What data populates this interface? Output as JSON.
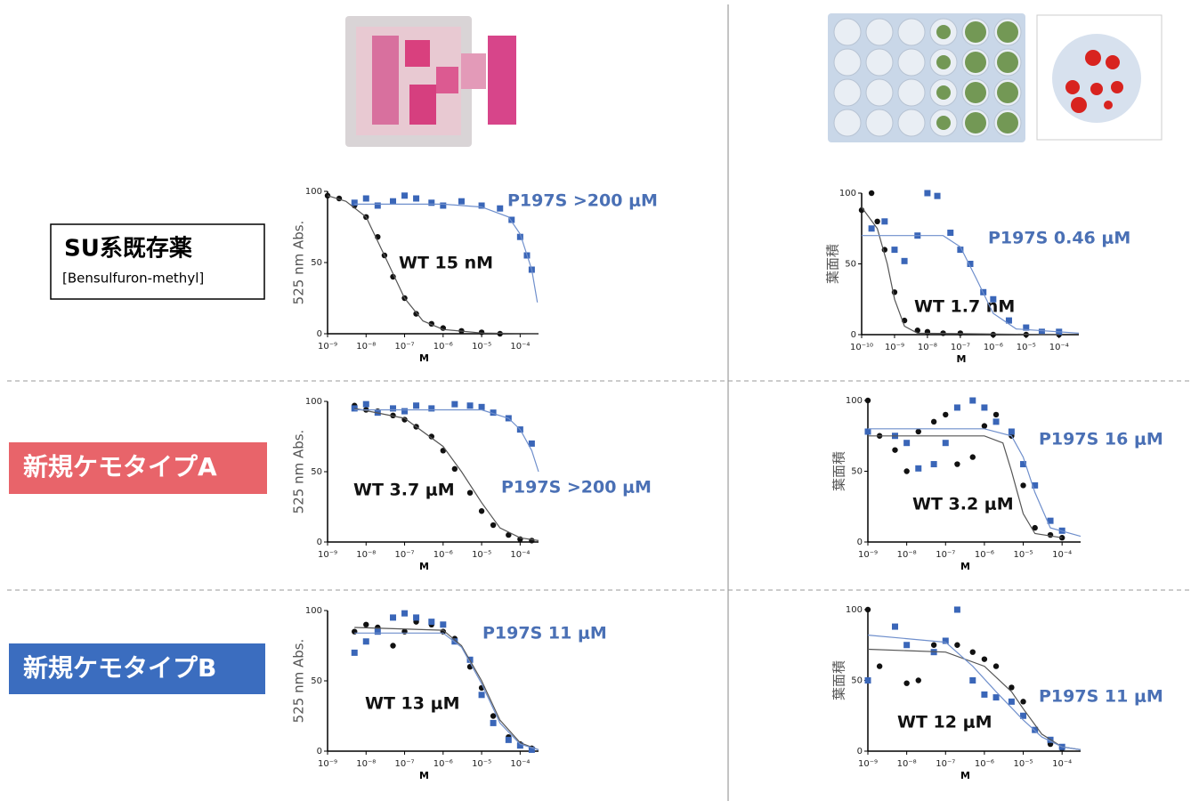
{
  "rows": [
    {
      "label": "SU系既存薬",
      "sublabel": "[Bensulfuron-methyl]"
    },
    {
      "label": "新規ケモタイプA"
    },
    {
      "label": "新規ケモタイプB"
    }
  ],
  "chart_data": [
    {
      "type": "scatter",
      "ylabel": "525 nm Abs.",
      "xlabel": "M",
      "xscale": "log",
      "xlim": [
        1e-09,
        0.0003
      ],
      "ylim": [
        0,
        100
      ],
      "yticks": [
        0,
        50,
        100
      ],
      "xticks": [
        {
          "value": 1e-09,
          "label": "10⁻⁹"
        },
        {
          "value": 1e-08,
          "label": "10⁻⁸"
        },
        {
          "value": 1e-07,
          "label": "10⁻⁷"
        },
        {
          "value": 1e-06,
          "label": "10⁻⁶"
        },
        {
          "value": 1e-05,
          "label": "10⁻⁵"
        },
        {
          "value": 0.0001,
          "label": "10⁻⁴"
        }
      ],
      "series": [
        {
          "name": "WT 15 nM",
          "color": "#111111",
          "mode": "markers",
          "marker": "circle",
          "x": [
            1e-09,
            2e-09,
            5e-09,
            1e-08,
            2e-08,
            3e-08,
            5e-08,
            1e-07,
            2e-07,
            5e-07,
            1e-06,
            3e-06,
            1e-05,
            3e-05
          ],
          "values": [
            97,
            95,
            90,
            82,
            68,
            55,
            40,
            25,
            14,
            7,
            4,
            2,
            1,
            0
          ]
        },
        {
          "name": "P197S >200 μM",
          "color": "#3a66b8",
          "mode": "markers",
          "marker": "square",
          "x": [
            5e-09,
            1e-08,
            2e-08,
            5e-08,
            1e-07,
            2e-07,
            5e-07,
            1e-06,
            3e-06,
            1e-05,
            3e-05,
            6e-05,
            0.0001,
            0.00015,
            0.0002
          ],
          "values": [
            92,
            95,
            90,
            93,
            97,
            95,
            92,
            90,
            93,
            90,
            88,
            80,
            68,
            55,
            45
          ]
        },
        {
          "color": "#555555",
          "mode": "line",
          "x": [
            1e-09,
            3e-09,
            1e-08,
            3e-08,
            1e-07,
            3e-07,
            1e-06,
            1e-05,
            0.0003
          ],
          "values": [
            97,
            93,
            82,
            55,
            25,
            9,
            3,
            0.5,
            0
          ]
        },
        {
          "color": "#6f8fcc",
          "mode": "line",
          "x": [
            5e-09,
            1e-06,
            1e-05,
            5e-05,
            0.0001,
            0.0002,
            0.00028
          ],
          "values": [
            91,
            91,
            89,
            82,
            70,
            45,
            22
          ]
        }
      ]
    },
    {
      "type": "scatter",
      "ylabel": "葉面積",
      "xlabel": "M",
      "xscale": "log",
      "xlim": [
        1e-10,
        0.0004
      ],
      "ylim": [
        0,
        100
      ],
      "yticks": [
        0,
        50,
        100
      ],
      "xticks": [
        {
          "value": 1e-10,
          "label": "10⁻¹⁰"
        },
        {
          "value": 1e-09,
          "label": "10⁻⁹"
        },
        {
          "value": 1e-08,
          "label": "10⁻⁸"
        },
        {
          "value": 1e-07,
          "label": "10⁻⁷"
        },
        {
          "value": 1e-06,
          "label": "10⁻⁶"
        },
        {
          "value": 1e-05,
          "label": "10⁻⁵"
        },
        {
          "value": 0.0001,
          "label": "10⁻⁴"
        }
      ],
      "series": [
        {
          "name": "WT 1.7 nM",
          "color": "#111111",
          "mode": "markers",
          "marker": "circle",
          "x": [
            1e-10,
            2e-10,
            3e-10,
            5e-10,
            1e-09,
            2e-09,
            5e-09,
            1e-08,
            3e-08,
            1e-07,
            1e-06,
            1e-05,
            0.0001
          ],
          "values": [
            88,
            100,
            80,
            60,
            30,
            10,
            3,
            2,
            1,
            1,
            0,
            0,
            0
          ]
        },
        {
          "name": "P197S 0.46 μM",
          "color": "#3a66b8",
          "mode": "markers",
          "marker": "square",
          "x": [
            2e-10,
            5e-10,
            1e-09,
            2e-09,
            5e-09,
            1e-08,
            2e-08,
            5e-08,
            1e-07,
            2e-07,
            5e-07,
            1e-06,
            3e-06,
            1e-05,
            3e-05,
            0.0001
          ],
          "values": [
            75,
            80,
            60,
            52,
            70,
            100,
            98,
            72,
            60,
            50,
            30,
            25,
            10,
            5,
            2,
            2
          ]
        },
        {
          "color": "#555555",
          "mode": "line",
          "x": [
            1e-10,
            3e-10,
            6e-10,
            1e-09,
            2e-09,
            5e-09,
            0.0001
          ],
          "values": [
            90,
            75,
            50,
            25,
            6,
            1,
            0
          ]
        },
        {
          "color": "#6f8fcc",
          "mode": "line",
          "x": [
            1e-10,
            3e-08,
            1e-07,
            3e-07,
            1e-06,
            5e-06,
            0.0004
          ],
          "values": [
            70,
            70,
            62,
            40,
            15,
            4,
            1
          ]
        }
      ]
    },
    {
      "type": "scatter",
      "ylabel": "525 nm Abs.",
      "xlabel": "M",
      "xscale": "log",
      "xlim": [
        1e-09,
        0.0003
      ],
      "ylim": [
        0,
        100
      ],
      "yticks": [
        0,
        50,
        100
      ],
      "xticks": [
        {
          "value": 1e-09,
          "label": "10⁻⁹"
        },
        {
          "value": 1e-08,
          "label": "10⁻⁸"
        },
        {
          "value": 1e-07,
          "label": "10⁻⁷"
        },
        {
          "value": 1e-06,
          "label": "10⁻⁶"
        },
        {
          "value": 1e-05,
          "label": "10⁻⁵"
        },
        {
          "value": 0.0001,
          "label": "10⁻⁴"
        }
      ],
      "series": [
        {
          "name": "WT 3.7 μM",
          "color": "#111111",
          "mode": "markers",
          "marker": "circle",
          "x": [
            5e-09,
            1e-08,
            2e-08,
            5e-08,
            1e-07,
            2e-07,
            5e-07,
            1e-06,
            2e-06,
            5e-06,
            1e-05,
            2e-05,
            5e-05,
            0.0001,
            0.0002
          ],
          "values": [
            97,
            94,
            93,
            90,
            87,
            82,
            75,
            65,
            52,
            35,
            22,
            12,
            5,
            2,
            1
          ]
        },
        {
          "name": "P197S >200 μM",
          "color": "#3a66b8",
          "mode": "markers",
          "marker": "square",
          "x": [
            5e-09,
            1e-08,
            2e-08,
            5e-08,
            1e-07,
            2e-07,
            5e-07,
            2e-06,
            5e-06,
            1e-05,
            2e-05,
            5e-05,
            0.0001,
            0.0002
          ],
          "values": [
            95,
            98,
            92,
            95,
            93,
            97,
            95,
            98,
            97,
            96,
            92,
            88,
            80,
            70
          ]
        },
        {
          "color": "#555555",
          "mode": "line",
          "x": [
            5e-09,
            1e-07,
            1e-06,
            3e-06,
            1e-05,
            3e-05,
            0.0001,
            0.0003
          ],
          "values": [
            95,
            88,
            68,
            50,
            28,
            10,
            3,
            1
          ]
        },
        {
          "color": "#6f8fcc",
          "mode": "line",
          "x": [
            5e-09,
            1e-05,
            5e-05,
            0.0001,
            0.0002,
            0.0003
          ],
          "values": [
            94,
            94,
            88,
            80,
            65,
            50
          ]
        }
      ]
    },
    {
      "type": "scatter",
      "ylabel": "葉面積",
      "xlabel": "M",
      "xscale": "log",
      "xlim": [
        1e-09,
        0.0003
      ],
      "ylim": [
        0,
        100
      ],
      "yticks": [
        0,
        50,
        100
      ],
      "xticks": [
        {
          "value": 1e-09,
          "label": "10⁻⁹"
        },
        {
          "value": 1e-08,
          "label": "10⁻⁸"
        },
        {
          "value": 1e-07,
          "label": "10⁻⁷"
        },
        {
          "value": 1e-06,
          "label": "10⁻⁶"
        },
        {
          "value": 1e-05,
          "label": "10⁻⁵"
        },
        {
          "value": 0.0001,
          "label": "10⁻⁴"
        }
      ],
      "series": [
        {
          "name": "WT 3.2 μM",
          "color": "#111111",
          "mode": "markers",
          "marker": "circle",
          "x": [
            1e-09,
            2e-09,
            5e-09,
            1e-08,
            2e-08,
            5e-08,
            1e-07,
            2e-07,
            5e-07,
            1e-06,
            2e-06,
            5e-06,
            1e-05,
            2e-05,
            5e-05,
            0.0001
          ],
          "values": [
            100,
            75,
            65,
            50,
            78,
            85,
            90,
            55,
            60,
            82,
            90,
            75,
            40,
            10,
            5,
            3
          ]
        },
        {
          "name": "P197S 16 μM",
          "color": "#3a66b8",
          "mode": "markers",
          "marker": "square",
          "x": [
            1e-09,
            5e-09,
            1e-08,
            2e-08,
            5e-08,
            1e-07,
            2e-07,
            5e-07,
            1e-06,
            2e-06,
            5e-06,
            1e-05,
            2e-05,
            5e-05,
            0.0001
          ],
          "values": [
            78,
            75,
            70,
            52,
            55,
            70,
            95,
            100,
            95,
            85,
            78,
            55,
            40,
            15,
            8
          ]
        },
        {
          "color": "#555555",
          "mode": "line",
          "x": [
            1e-09,
            1e-06,
            3e-06,
            5e-06,
            1e-05,
            2e-05,
            0.0001
          ],
          "values": [
            75,
            75,
            70,
            50,
            20,
            6,
            3
          ]
        },
        {
          "color": "#6f8fcc",
          "mode": "line",
          "x": [
            1e-09,
            1e-06,
            5e-06,
            1e-05,
            2e-05,
            5e-05,
            0.0003
          ],
          "values": [
            80,
            80,
            75,
            60,
            35,
            10,
            4
          ]
        }
      ]
    },
    {
      "type": "scatter",
      "ylabel": "525 nm Abs.",
      "xlabel": "M",
      "xscale": "log",
      "xlim": [
        1e-09,
        0.0003
      ],
      "ylim": [
        0,
        100
      ],
      "yticks": [
        0,
        50,
        100
      ],
      "xticks": [
        {
          "value": 1e-09,
          "label": "10⁻⁹"
        },
        {
          "value": 1e-08,
          "label": "10⁻⁸"
        },
        {
          "value": 1e-07,
          "label": "10⁻⁷"
        },
        {
          "value": 1e-06,
          "label": "10⁻⁶"
        },
        {
          "value": 1e-05,
          "label": "10⁻⁵"
        },
        {
          "value": 0.0001,
          "label": "10⁻⁴"
        }
      ],
      "series": [
        {
          "name": "WT 13 μM",
          "color": "#111111",
          "mode": "markers",
          "marker": "circle",
          "x": [
            5e-09,
            1e-08,
            2e-08,
            5e-08,
            1e-07,
            2e-07,
            5e-07,
            1e-06,
            2e-06,
            5e-06,
            1e-05,
            2e-05,
            5e-05,
            0.0001,
            0.0002
          ],
          "values": [
            85,
            90,
            88,
            75,
            85,
            92,
            90,
            85,
            80,
            60,
            45,
            25,
            10,
            5,
            2
          ]
        },
        {
          "name": "P197S 11 μM",
          "color": "#3a66b8",
          "mode": "markers",
          "marker": "square",
          "x": [
            5e-09,
            1e-08,
            2e-08,
            5e-08,
            1e-07,
            2e-07,
            5e-07,
            1e-06,
            2e-06,
            5e-06,
            1e-05,
            2e-05,
            5e-05,
            0.0001,
            0.0002
          ],
          "values": [
            70,
            78,
            85,
            95,
            98,
            95,
            92,
            90,
            78,
            65,
            40,
            20,
            8,
            4,
            1
          ]
        },
        {
          "color": "#555555",
          "mode": "line",
          "x": [
            5e-09,
            1e-06,
            3e-06,
            1e-05,
            3e-05,
            0.0001,
            0.0003
          ],
          "values": [
            88,
            86,
            75,
            50,
            22,
            6,
            1
          ]
        },
        {
          "color": "#6f8fcc",
          "mode": "line",
          "x": [
            5e-09,
            1e-06,
            3e-06,
            1e-05,
            3e-05,
            0.0001,
            0.0003
          ],
          "values": [
            84,
            84,
            74,
            48,
            20,
            5,
            1
          ]
        }
      ]
    },
    {
      "type": "scatter",
      "ylabel": "葉面積",
      "xlabel": "M",
      "xscale": "log",
      "xlim": [
        1e-09,
        0.0003
      ],
      "ylim": [
        0,
        100
      ],
      "yticks": [
        0,
        50,
        100
      ],
      "xticks": [
        {
          "value": 1e-09,
          "label": "10⁻⁹"
        },
        {
          "value": 1e-08,
          "label": "10⁻⁸"
        },
        {
          "value": 1e-07,
          "label": "10⁻⁷"
        },
        {
          "value": 1e-06,
          "label": "10⁻⁶"
        },
        {
          "value": 1e-05,
          "label": "10⁻⁵"
        },
        {
          "value": 0.0001,
          "label": "10⁻⁴"
        }
      ],
      "series": [
        {
          "name": "WT 12 μM",
          "color": "#111111",
          "mode": "markers",
          "marker": "circle",
          "x": [
            1e-09,
            2e-09,
            5e-09,
            1e-08,
            2e-08,
            5e-08,
            1e-07,
            2e-07,
            5e-07,
            1e-06,
            2e-06,
            5e-06,
            1e-05,
            2e-05,
            5e-05,
            0.0001
          ],
          "values": [
            100,
            60,
            88,
            48,
            50,
            75,
            78,
            75,
            70,
            65,
            60,
            45,
            35,
            15,
            5,
            2
          ]
        },
        {
          "name": "P197S 11 μM",
          "color": "#3a66b8",
          "mode": "markers",
          "marker": "square",
          "x": [
            1e-09,
            5e-09,
            1e-08,
            5e-08,
            1e-07,
            2e-07,
            5e-07,
            1e-06,
            2e-06,
            5e-06,
            1e-05,
            2e-05,
            5e-05,
            0.0001
          ],
          "values": [
            50,
            88,
            75,
            70,
            78,
            100,
            50,
            40,
            38,
            35,
            25,
            15,
            8,
            3
          ]
        },
        {
          "color": "#555555",
          "mode": "line",
          "x": [
            1e-09,
            1e-07,
            1e-06,
            5e-06,
            1e-05,
            3e-05,
            0.0001,
            0.0003
          ],
          "values": [
            72,
            70,
            60,
            42,
            30,
            12,
            3,
            1
          ]
        },
        {
          "color": "#6f8fcc",
          "mode": "line",
          "x": [
            1e-09,
            1e-07,
            5e-07,
            2e-06,
            1e-05,
            3e-05,
            0.0001,
            0.0003
          ],
          "values": [
            82,
            77,
            60,
            42,
            22,
            10,
            3,
            1
          ]
        }
      ]
    }
  ]
}
